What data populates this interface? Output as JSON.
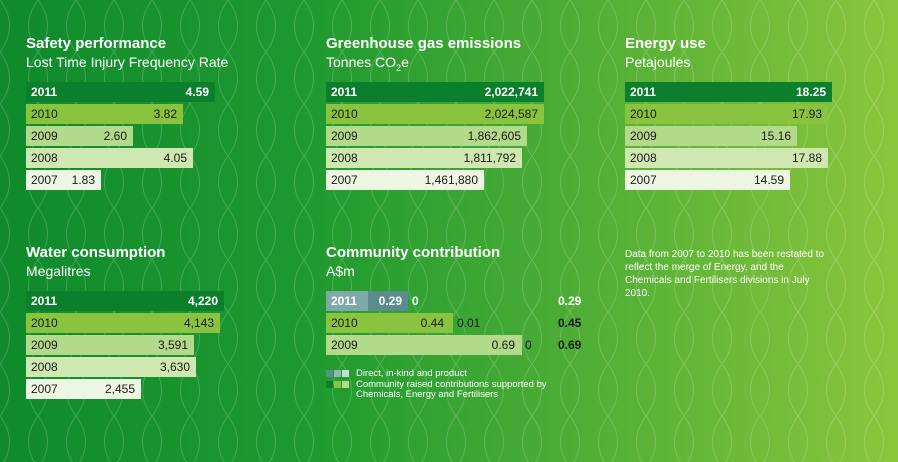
{
  "chart_data": [
    {
      "type": "bar",
      "title": "Safety performance",
      "subtitle": "Lost Time Injury Frequency Rate",
      "categories": [
        "2011",
        "2010",
        "2009",
        "2008",
        "2007"
      ],
      "values": [
        4.59,
        3.82,
        2.6,
        4.05,
        1.83
      ],
      "labels": [
        "4.59",
        "3.82",
        "2.60",
        "4.05",
        "1.83"
      ],
      "xlim": [
        0,
        5.1
      ]
    },
    {
      "type": "bar",
      "title": "Greenhouse gas emissions",
      "subtitle": "Tonnes CO",
      "subtitle_sub": "2",
      "subtitle_tail": "e",
      "categories": [
        "2011",
        "2010",
        "2009",
        "2008",
        "2007"
      ],
      "values": [
        2022741,
        2024587,
        1862605,
        1811792,
        1461880
      ],
      "labels": [
        "2,022,741",
        "2,024,587",
        "1,862,605",
        "1,811,792",
        "1,461,880"
      ],
      "xlim": [
        0,
        2150000
      ]
    },
    {
      "type": "bar",
      "title": "Energy use",
      "subtitle": "Petajoules",
      "categories": [
        "2011",
        "2010",
        "2009",
        "2008",
        "2007"
      ],
      "values": [
        18.25,
        17.93,
        15.16,
        17.88,
        14.59
      ],
      "labels": [
        "18.25",
        "17.93",
        "15.16",
        "17.88",
        "14.59"
      ],
      "xlim": [
        0,
        19.4
      ]
    },
    {
      "type": "bar",
      "title": "Water consumption",
      "subtitle": "Megalitres",
      "categories": [
        "2011",
        "2010",
        "2009",
        "2008",
        "2007"
      ],
      "values": [
        4220,
        4143,
        3591,
        3630,
        2455
      ],
      "labels": [
        "4,220",
        "4,143",
        "3,591",
        "3,630",
        "2,455"
      ],
      "xlim": [
        0,
        4700
      ]
    },
    {
      "type": "bar",
      "stacked": true,
      "title": "Community contribution",
      "subtitle": "A$m",
      "categories": [
        "2011",
        "2010",
        "2009"
      ],
      "series": [
        {
          "values": [
            0.29,
            0.44,
            0.69
          ],
          "labels": [
            "0.29",
            "0.44",
            "0.69"
          ]
        },
        {
          "values": [
            0,
            0.01,
            0
          ],
          "labels": [
            "0",
            "0.01",
            "0"
          ]
        }
      ],
      "totals": [
        "0.29",
        "0.45",
        "0.69"
      ],
      "xlim": [
        0,
        0.85
      ],
      "legend": [
        "Direct, in-kind and product",
        "Community raised contributions supported by Chemicals, Energy and Fertilisers"
      ]
    }
  ],
  "note": "Data from 2007 to 2010 has been restated to reflect the merge of Energy, and the Chemicals and Fertilisers divisions in July 2010.",
  "colors": {
    "row_2011": "#0c7f2c",
    "row_2010": "#8ac43f",
    "row_2009": "#b3d98a",
    "row_2008": "#cfe8b1",
    "row_2007": "#edf6e3",
    "comm_direct": "#7fa8a8",
    "comm_direct_2011": "#5b8d8f",
    "comm_raised": "#0c7f2c"
  }
}
